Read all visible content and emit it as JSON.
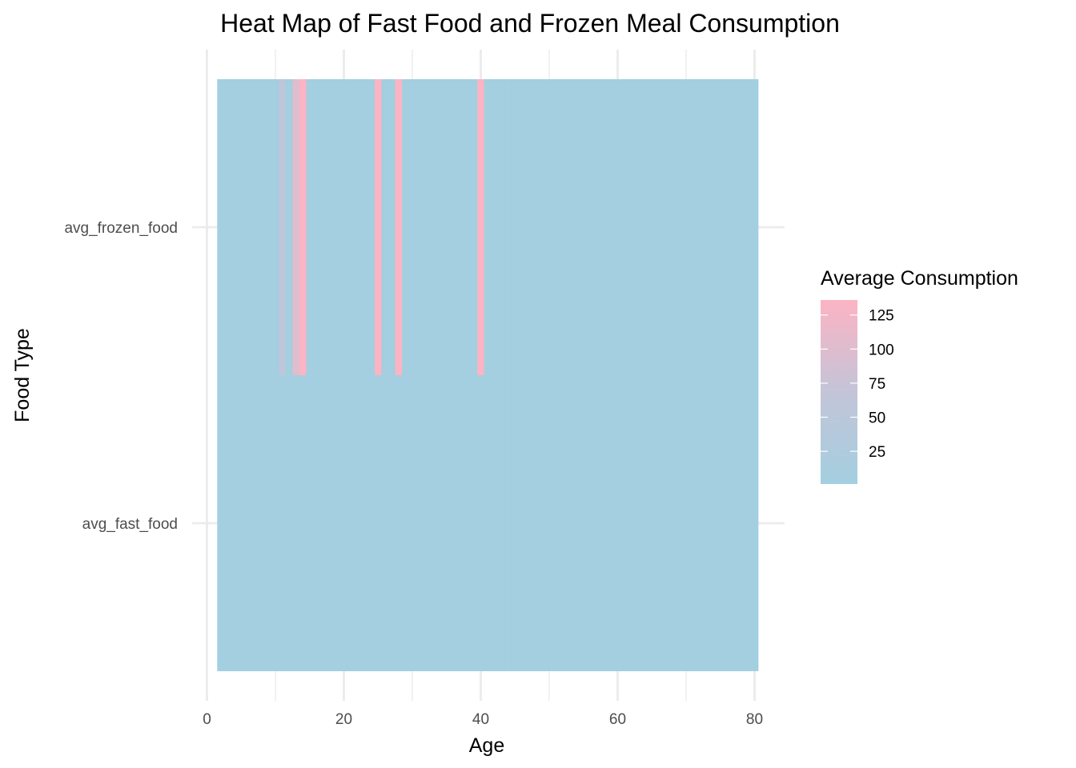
{
  "chart_data": {
    "type": "heatmap",
    "title": "Heat Map of Fast Food and Frozen Meal Consumption",
    "xlabel": "Age",
    "ylabel": "Food Type",
    "xlim": [
      0,
      84
    ],
    "x_breaks": [
      0,
      20,
      40,
      60,
      80
    ],
    "x_minor_breaks": [
      10,
      30,
      50,
      70
    ],
    "x_tick_labels": [
      "0",
      "20",
      "40",
      "60",
      "80"
    ],
    "categories": [
      "avg_fast_food",
      "avg_frozen_food"
    ],
    "x_range": [
      2,
      80
    ],
    "tile_width": 1,
    "grid": true,
    "baseline_value": 2,
    "series": [
      {
        "name": "avg_fast_food",
        "default_value": 2,
        "highlights": []
      },
      {
        "name": "avg_frozen_food",
        "default_value": 2,
        "highlights": [
          {
            "x": 11,
            "value": 55
          },
          {
            "x": 13,
            "value": 100
          },
          {
            "x": 14,
            "value": 135
          },
          {
            "x": 25,
            "value": 135
          },
          {
            "x": 28,
            "value": 135
          },
          {
            "x": 40,
            "value": 135
          }
        ]
      }
    ],
    "legend": {
      "title": "Average Consumption",
      "position": "right",
      "breaks": [
        25,
        50,
        75,
        100,
        125
      ],
      "labels": [
        "25",
        "50",
        "75",
        "100",
        "125"
      ],
      "range": [
        1,
        136
      ],
      "low_color": "#a3cfe0",
      "high_color": "#fcb4c3"
    }
  }
}
